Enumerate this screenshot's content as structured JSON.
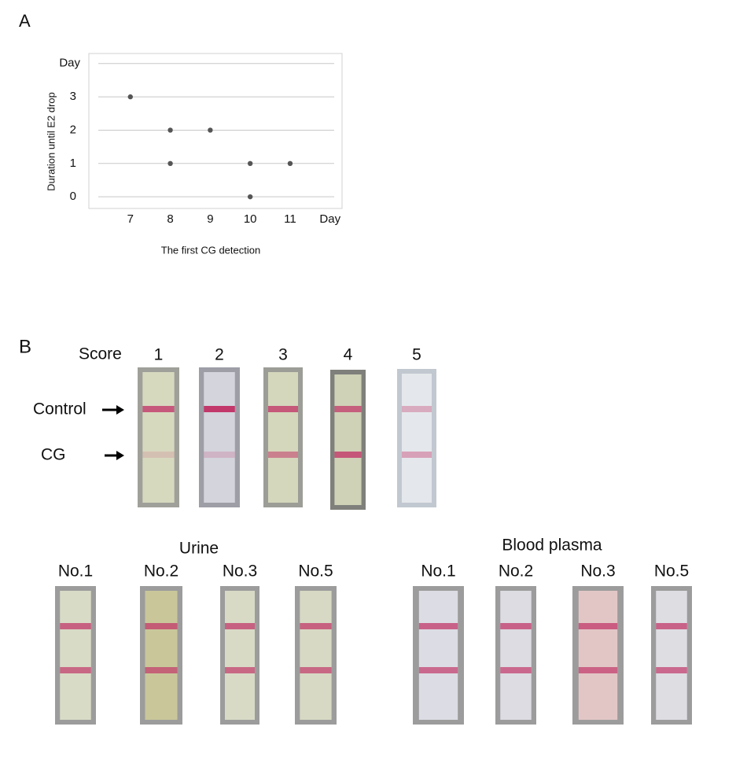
{
  "chart_data": {
    "type": "scatter",
    "panel_label": "A",
    "x_label": "The first CG detection",
    "y_label": "Duration until E2 drop",
    "x": [
      7,
      8,
      9,
      8,
      10,
      11,
      10
    ],
    "values": [
      3,
      2,
      2,
      1,
      1,
      1,
      0
    ],
    "color": "#555555",
    "xlim": [
      6,
      12.3
    ],
    "ylim": [
      -0.35,
      4.3
    ],
    "xticks": [
      7,
      8,
      9,
      10,
      11,
      {
        "value": 12,
        "label": "Day"
      }
    ],
    "yticks": [
      0,
      1,
      2,
      3,
      {
        "value": 4,
        "label": "Day"
      }
    ],
    "grid": true
  },
  "panel_b": {
    "label": "B",
    "score_label": "Score",
    "scores": [
      "1",
      "2",
      "3",
      "4",
      "5"
    ],
    "arrows": [
      "Control",
      "CG"
    ],
    "urine": {
      "title": "Urine",
      "samples": [
        "No.1",
        "No.2",
        "No.3",
        "No.5"
      ]
    },
    "plasma": {
      "title": "Blood plasma",
      "samples": [
        "No.1",
        "No.2",
        "No.3",
        "No.5"
      ]
    }
  }
}
